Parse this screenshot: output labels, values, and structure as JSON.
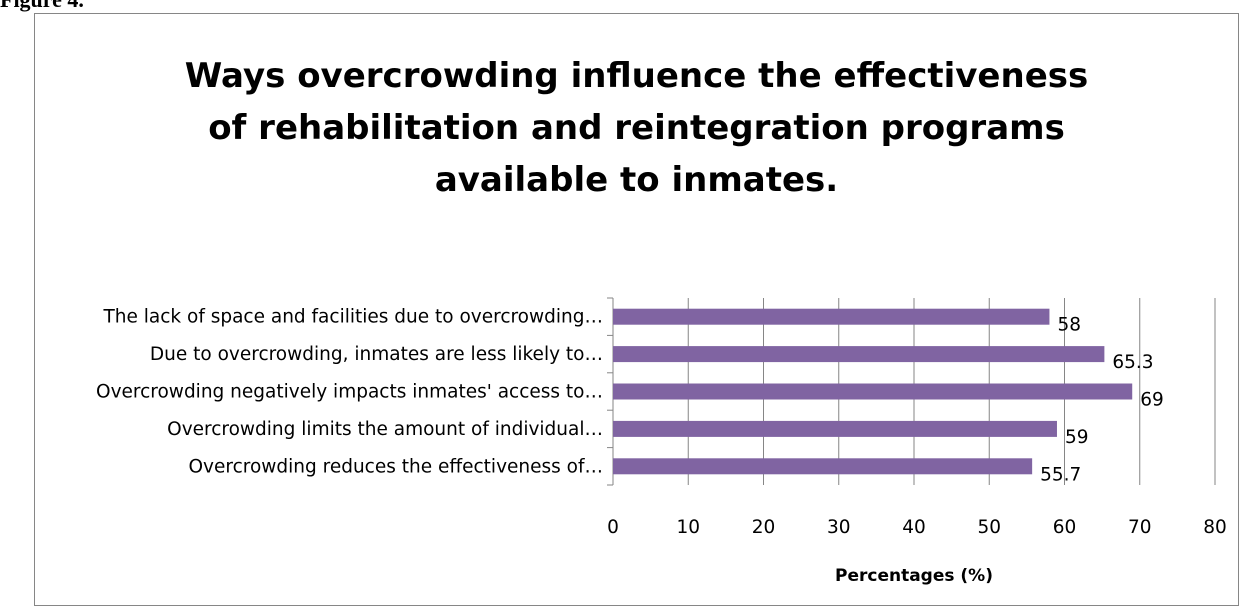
{
  "figure_label": "Figure 4.",
  "chart_data": {
    "type": "bar",
    "orientation": "horizontal",
    "title_lines": [
      "Ways overcrowding influence the effectiveness",
      "of rehabilitation and reintegration programs",
      "available to inmates."
    ],
    "categories": [
      "The lack of space and facilities due to overcrowding…",
      "Due to overcrowding, inmates are less likely to…",
      "Overcrowding negatively impacts inmates' access to…",
      "Overcrowding limits the amount of individual…",
      "Overcrowding reduces the effectiveness of…"
    ],
    "values": [
      58,
      65.3,
      69,
      59,
      55.7
    ],
    "data_labels": [
      "58",
      "65.3",
      "69",
      "59",
      "55.7"
    ],
    "xlabel": "Percentages (%)",
    "ylabel": "",
    "xlim": [
      0,
      80
    ],
    "xticks": [
      "0",
      "10",
      "20",
      "30",
      "40",
      "50",
      "60",
      "70",
      "80"
    ],
    "gridlines": true,
    "legend": "none",
    "bar_color": "#8064a2",
    "gridline_color": "#868686"
  }
}
